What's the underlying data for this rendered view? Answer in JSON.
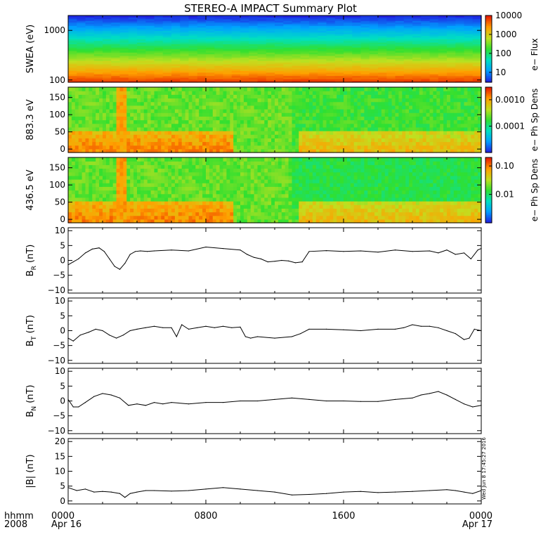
{
  "title": "STEREO-A IMPACT Summary Plot",
  "side_stamp": "Wed Jun  8 17:45:27 2016",
  "time_axis": {
    "format_label": "hhmm",
    "year_label": "2008",
    "ticks": [
      {
        "hour": 0,
        "label": "0000",
        "sublabel": "Apr 16"
      },
      {
        "hour": 8,
        "label": "0800",
        "sublabel": ""
      },
      {
        "hour": 16,
        "label": "1600",
        "sublabel": ""
      },
      {
        "hour": 24,
        "label": "0000",
        "sublabel": "Apr 17"
      }
    ],
    "range_hours": [
      0,
      24
    ]
  },
  "colors": {
    "colormap": [
      "#2020e0",
      "#00a0ff",
      "#00e0c0",
      "#30e030",
      "#c0e020",
      "#ffa000",
      "#e82000"
    ]
  },
  "chart_data": [
    {
      "type": "heatmap",
      "name": "swea",
      "ylabel": "SWEA (eV)",
      "y_scale": "log",
      "ylim": [
        90,
        2000
      ],
      "yticks": [
        {
          "v": 100,
          "label": "100"
        },
        {
          "v": 1000,
          "label": "1000"
        }
      ],
      "colorbar": {
        "label": "e− Flux",
        "scale": "log",
        "range": [
          3,
          10000
        ],
        "ticks": [
          {
            "v": 10,
            "label": "10"
          },
          {
            "v": 100,
            "label": "100"
          },
          {
            "v": 1000,
            "label": "1000"
          },
          {
            "v": 10000,
            "label": "10000"
          }
        ]
      }
    },
    {
      "type": "heatmap",
      "name": "pad_883",
      "ylabel": "883.3 eV",
      "y_scale": "linear",
      "ylim": [
        -10,
        180
      ],
      "yticks": [
        {
          "v": 0,
          "label": "0"
        },
        {
          "v": 50,
          "label": "50"
        },
        {
          "v": 100,
          "label": "100"
        },
        {
          "v": 150,
          "label": "150"
        }
      ],
      "colorbar": {
        "label": "e− Ph Sp Dens",
        "scale": "log",
        "range": [
          1e-05,
          0.003
        ],
        "ticks": [
          {
            "v": 0.0001,
            "label": "0.0001"
          },
          {
            "v": 0.001,
            "label": "0.0010"
          }
        ]
      }
    },
    {
      "type": "heatmap",
      "name": "pad_436",
      "ylabel": "436.5 eV",
      "y_scale": "linear",
      "ylim": [
        -10,
        180
      ],
      "yticks": [
        {
          "v": 0,
          "label": "0"
        },
        {
          "v": 50,
          "label": "50"
        },
        {
          "v": 100,
          "label": "100"
        },
        {
          "v": 150,
          "label": "150"
        }
      ],
      "colorbar": {
        "label": "e− Ph Sp Dens",
        "scale": "log",
        "range": [
          0.001,
          0.2
        ],
        "ticks": [
          {
            "v": 0.01,
            "label": "0.01"
          },
          {
            "v": 0.1,
            "label": "0.10"
          }
        ]
      }
    },
    {
      "type": "line",
      "name": "br",
      "ylabel": "B",
      "ylabel_sub": "R",
      "ylabel_unit": "(nT)",
      "ylim": [
        -11,
        11
      ],
      "yticks": [
        {
          "v": -10,
          "label": "−10"
        },
        {
          "v": -5,
          "label": "−5"
        },
        {
          "v": 0,
          "label": "0"
        },
        {
          "v": 5,
          "label": "5"
        },
        {
          "v": 10,
          "label": "10"
        }
      ],
      "x": [
        0,
        0.3,
        0.6,
        1.0,
        1.4,
        1.8,
        2.1,
        2.4,
        2.7,
        3.0,
        3.3,
        3.6,
        3.9,
        4.2,
        4.6,
        5,
        6,
        7,
        8,
        9,
        10,
        10.4,
        10.8,
        11.2,
        11.6,
        12,
        12.4,
        12.8,
        13.2,
        13.6,
        14,
        15,
        16,
        17,
        18,
        19,
        20,
        21,
        21.5,
        22,
        22.5,
        23,
        23.4,
        23.8,
        24
      ],
      "y": [
        -1.5,
        -0.5,
        0.5,
        2.5,
        3.8,
        4.2,
        3.0,
        0.5,
        -2.0,
        -3.0,
        -1.0,
        2.0,
        3.0,
        3.2,
        3.0,
        3.2,
        3.5,
        3.2,
        4.5,
        4.0,
        3.5,
        2.0,
        1.0,
        0.5,
        -0.5,
        -0.3,
        0.0,
        -0.2,
        -0.8,
        -0.5,
        3.0,
        3.3,
        3.0,
        3.2,
        2.8,
        3.5,
        3.0,
        3.2,
        2.5,
        3.5,
        2.0,
        2.5,
        0.5,
        3.5,
        4.0
      ]
    },
    {
      "type": "line",
      "name": "bt",
      "ylabel": "B",
      "ylabel_sub": "T",
      "ylabel_unit": "(nT)",
      "ylim": [
        -11,
        11
      ],
      "yticks": [
        {
          "v": -10,
          "label": "−10"
        },
        {
          "v": -5,
          "label": "−5"
        },
        {
          "v": 0,
          "label": "0"
        },
        {
          "v": 5,
          "label": "5"
        },
        {
          "v": 10,
          "label": "10"
        }
      ],
      "x": [
        0,
        0.3,
        0.7,
        1.2,
        1.6,
        2.0,
        2.4,
        2.8,
        3.2,
        3.6,
        4.0,
        4.5,
        5,
        5.5,
        6,
        6.3,
        6.6,
        7,
        7.5,
        8,
        8.5,
        9,
        9.5,
        10,
        10.3,
        10.6,
        11,
        12,
        13,
        13.5,
        14,
        15,
        16,
        17,
        18,
        19,
        19.5,
        20,
        20.5,
        21,
        21.5,
        22,
        22.5,
        23,
        23.3,
        23.6,
        24
      ],
      "y": [
        -2.5,
        -3.5,
        -1.5,
        -0.5,
        0.5,
        0.0,
        -1.5,
        -2.5,
        -1.5,
        0.0,
        0.5,
        1.0,
        1.5,
        1.0,
        1.0,
        -2.0,
        2.0,
        0.5,
        1.0,
        1.5,
        1.0,
        1.5,
        1.0,
        1.2,
        -2.0,
        -2.5,
        -2.0,
        -2.5,
        -2.0,
        -1.0,
        0.5,
        0.5,
        0.3,
        0.0,
        0.5,
        0.5,
        1.0,
        2.0,
        1.5,
        1.5,
        1.0,
        0.0,
        -1.0,
        -3.0,
        -2.5,
        0.5,
        0.0
      ]
    },
    {
      "type": "line",
      "name": "bn",
      "ylabel": "B",
      "ylabel_sub": "N",
      "ylabel_unit": "(nT)",
      "ylim": [
        -11,
        11
      ],
      "yticks": [
        {
          "v": -10,
          "label": "−10"
        },
        {
          "v": -5,
          "label": "−5"
        },
        {
          "v": 0,
          "label": "0"
        },
        {
          "v": 5,
          "label": "5"
        },
        {
          "v": 10,
          "label": "10"
        }
      ],
      "x": [
        0,
        0.3,
        0.6,
        1.0,
        1.5,
        2.0,
        2.5,
        3.0,
        3.5,
        4.0,
        4.5,
        5,
        5.5,
        6,
        7,
        8,
        9,
        10,
        11,
        12,
        13,
        14,
        15,
        16,
        17,
        18,
        19,
        20,
        20.5,
        21,
        21.5,
        22,
        22.5,
        23,
        23.5,
        24
      ],
      "y": [
        0.5,
        -2.0,
        -2.0,
        -0.5,
        1.5,
        2.5,
        2.0,
        1.0,
        -1.5,
        -1.0,
        -1.5,
        -0.5,
        -1.0,
        -0.5,
        -1.0,
        -0.5,
        -0.5,
        0.0,
        0.0,
        0.5,
        1.0,
        0.5,
        0.0,
        0.0,
        -0.2,
        -0.2,
        0.5,
        1.0,
        2.0,
        2.5,
        3.2,
        2.0,
        0.5,
        -1.0,
        -2.0,
        -1.5
      ]
    },
    {
      "type": "line",
      "name": "bmag",
      "ylabel": "|B| (nT)",
      "ylim": [
        -1,
        21
      ],
      "yticks": [
        {
          "v": 0,
          "label": "0"
        },
        {
          "v": 5,
          "label": "5"
        },
        {
          "v": 10,
          "label": "10"
        },
        {
          "v": 15,
          "label": "15"
        },
        {
          "v": 20,
          "label": "20"
        }
      ],
      "x": [
        0,
        0.5,
        1,
        1.5,
        2,
        2.5,
        3,
        3.3,
        3.6,
        4,
        4.5,
        5,
        6,
        7,
        8,
        9,
        10,
        11,
        12,
        13,
        14,
        15,
        16,
        17,
        18,
        19,
        20,
        21,
        22,
        22.5,
        23,
        23.5,
        24
      ],
      "y": [
        4.5,
        3.5,
        4.0,
        3.0,
        3.2,
        3.0,
        2.5,
        1.2,
        2.5,
        3.0,
        3.5,
        3.5,
        3.3,
        3.5,
        4.0,
        4.5,
        4.0,
        3.5,
        3.0,
        2.0,
        2.2,
        2.5,
        3.0,
        3.2,
        2.8,
        3.0,
        3.2,
        3.5,
        3.8,
        3.5,
        3.0,
        2.5,
        3.5
      ]
    }
  ]
}
